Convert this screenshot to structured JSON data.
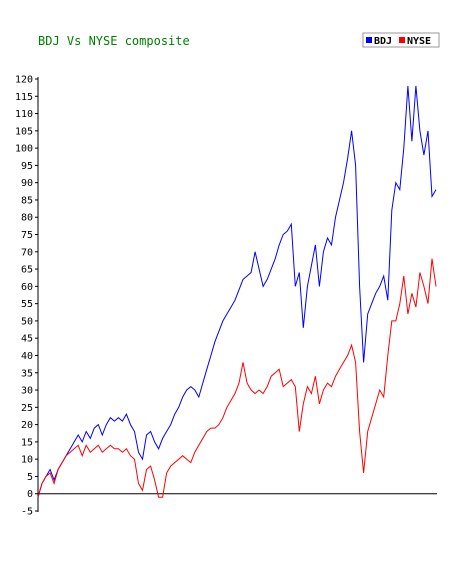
{
  "chart_data": {
    "type": "line",
    "title": "BDJ Vs NYSE composite",
    "title_color": "#008000",
    "xlabel": "",
    "ylabel": "",
    "ylim": [
      -5,
      120
    ],
    "y_ticks": [
      -5,
      0,
      5,
      10,
      15,
      20,
      25,
      30,
      35,
      40,
      45,
      50,
      55,
      60,
      65,
      70,
      75,
      80,
      85,
      90,
      95,
      100,
      105,
      110,
      115,
      120
    ],
    "x_count": 100,
    "legend_position": "top-right",
    "grid": false,
    "series": [
      {
        "name": "BDJ",
        "color": "#0000ff",
        "values": [
          -1,
          3,
          5,
          7,
          4,
          7,
          9,
          11,
          13,
          15,
          17,
          15,
          18,
          16,
          19,
          20,
          17,
          20,
          22,
          21,
          22,
          21,
          23,
          20,
          18,
          12,
          10,
          17,
          18,
          15,
          13,
          16,
          18,
          20,
          23,
          25,
          28,
          30,
          31,
          30,
          28,
          32,
          36,
          40,
          44,
          47,
          50,
          52,
          54,
          56,
          59,
          62,
          63,
          64,
          70,
          65,
          60,
          62,
          65,
          68,
          72,
          75,
          76,
          78,
          60,
          64,
          48,
          60,
          66,
          72,
          60,
          70,
          74,
          72,
          80,
          85,
          90,
          97,
          105,
          95,
          60,
          38,
          52,
          55,
          58,
          60,
          63,
          56,
          82,
          90,
          88,
          100,
          118,
          102,
          118,
          105,
          98,
          105,
          86,
          88
        ]
      },
      {
        "name": "NYSE",
        "color": "#ff0000",
        "values": [
          -1,
          3,
          5,
          6,
          3,
          7,
          9,
          11,
          12,
          13,
          14,
          11,
          14,
          12,
          13,
          14,
          12,
          13,
          14,
          13,
          13,
          12,
          13,
          11,
          10,
          3,
          1,
          7,
          8,
          4,
          -1,
          -1,
          6,
          8,
          9,
          10,
          11,
          10,
          9,
          12,
          14,
          16,
          18,
          19,
          19,
          20,
          22,
          25,
          27,
          29,
          32,
          38,
          32,
          30,
          29,
          30,
          29,
          31,
          34,
          35,
          36,
          31,
          32,
          33,
          31,
          18,
          26,
          31,
          29,
          34,
          26,
          30,
          32,
          31,
          34,
          36,
          38,
          40,
          43,
          38,
          18,
          6,
          18,
          22,
          26,
          30,
          28,
          40,
          50,
          50,
          55,
          63,
          52,
          58,
          54,
          64,
          60,
          55,
          68,
          60
        ]
      }
    ]
  }
}
